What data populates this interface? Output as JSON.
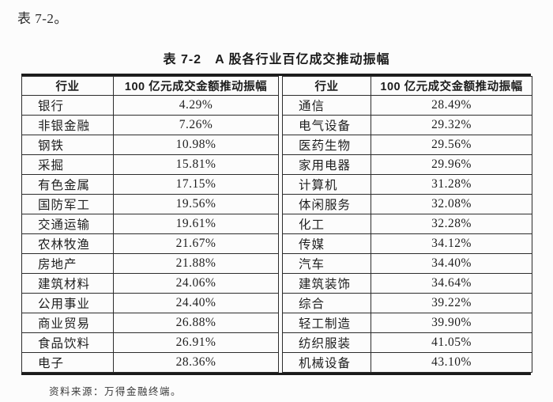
{
  "page": {
    "intro_text": "表 7-2。",
    "source_note": "资料来源：万得金融终端。"
  },
  "table": {
    "title": "表 7-2　A 股各行业百亿成交推动振幅",
    "left": {
      "header": {
        "industry": "行业",
        "value": "100 亿元成交金额推动振幅"
      },
      "rows": [
        {
          "industry": "银行",
          "value": "4.29%"
        },
        {
          "industry": "非银金融",
          "value": "7.26%"
        },
        {
          "industry": "钢铁",
          "value": "10.98%"
        },
        {
          "industry": "采掘",
          "value": "15.81%"
        },
        {
          "industry": "有色金属",
          "value": "17.15%"
        },
        {
          "industry": "国防军工",
          "value": "19.56%"
        },
        {
          "industry": "交通运输",
          "value": "19.61%"
        },
        {
          "industry": "农林牧渔",
          "value": "21.67%"
        },
        {
          "industry": "房地产",
          "value": "21.88%"
        },
        {
          "industry": "建筑材料",
          "value": "24.06%"
        },
        {
          "industry": "公用事业",
          "value": "24.40%"
        },
        {
          "industry": "商业贸易",
          "value": "26.88%"
        },
        {
          "industry": "食品饮料",
          "value": "26.91%"
        },
        {
          "industry": "电子",
          "value": "28.36%"
        }
      ]
    },
    "right": {
      "header": {
        "industry": "行业",
        "value": "100 亿元成交金额推动振幅"
      },
      "rows": [
        {
          "industry": "通信",
          "value": "28.49%"
        },
        {
          "industry": "电气设备",
          "value": "29.32%"
        },
        {
          "industry": "医药生物",
          "value": "29.56%"
        },
        {
          "industry": "家用电器",
          "value": "29.96%"
        },
        {
          "industry": "计算机",
          "value": "31.28%"
        },
        {
          "industry": "体闲服务",
          "value": "32.08%"
        },
        {
          "industry": "化工",
          "value": "32.28%"
        },
        {
          "industry": "传媒",
          "value": "34.12%"
        },
        {
          "industry": "汽车",
          "value": "34.40%"
        },
        {
          "industry": "建筑装饰",
          "value": "34.64%"
        },
        {
          "industry": "综合",
          "value": "39.22%"
        },
        {
          "industry": "轻工制造",
          "value": "39.90%"
        },
        {
          "industry": "纺织服装",
          "value": "41.05%"
        },
        {
          "industry": "机械设备",
          "value": "43.10%"
        }
      ]
    }
  }
}
